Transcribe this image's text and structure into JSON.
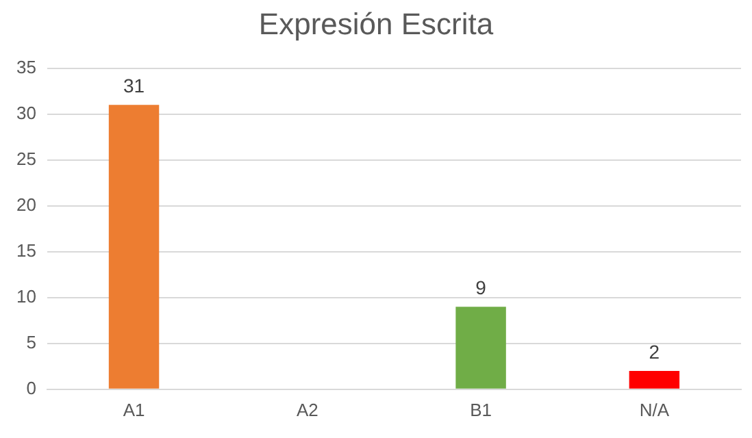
{
  "chart_data": {
    "type": "bar",
    "title": "Expresión Escrita",
    "categories": [
      "A1",
      "A2",
      "B1",
      "N/A"
    ],
    "values": [
      31,
      null,
      9,
      2
    ],
    "colors": [
      "#ed7d31",
      "#a5a5a5",
      "#70ad47",
      "#ff0000"
    ],
    "value_labels": [
      "31",
      null,
      "9",
      "2"
    ],
    "ylim": [
      0,
      35
    ],
    "yticks": [
      0,
      5,
      10,
      15,
      20,
      25,
      30,
      35
    ],
    "grid": "y",
    "legend": false
  }
}
